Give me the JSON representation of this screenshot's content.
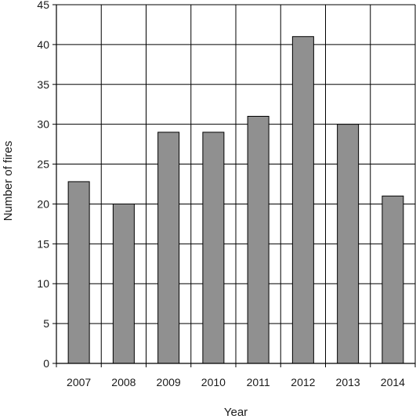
{
  "chart_data": {
    "type": "bar",
    "title": "",
    "xlabel": "Year",
    "ylabel": "Number of fires",
    "categories": [
      "2007",
      "2008",
      "2009",
      "2010",
      "2011",
      "2012",
      "2013",
      "2014"
    ],
    "values": [
      22.8,
      20,
      29,
      29,
      31,
      41,
      30,
      21
    ],
    "ylim": [
      0,
      45
    ],
    "yticks": [
      0,
      5,
      10,
      15,
      20,
      25,
      30,
      35,
      40,
      45
    ],
    "grid": true,
    "legend": "none",
    "colors": {
      "bar_fill": "#909090",
      "bar_stroke": "#000000",
      "grid": "#000000",
      "axis": "#000000"
    }
  }
}
